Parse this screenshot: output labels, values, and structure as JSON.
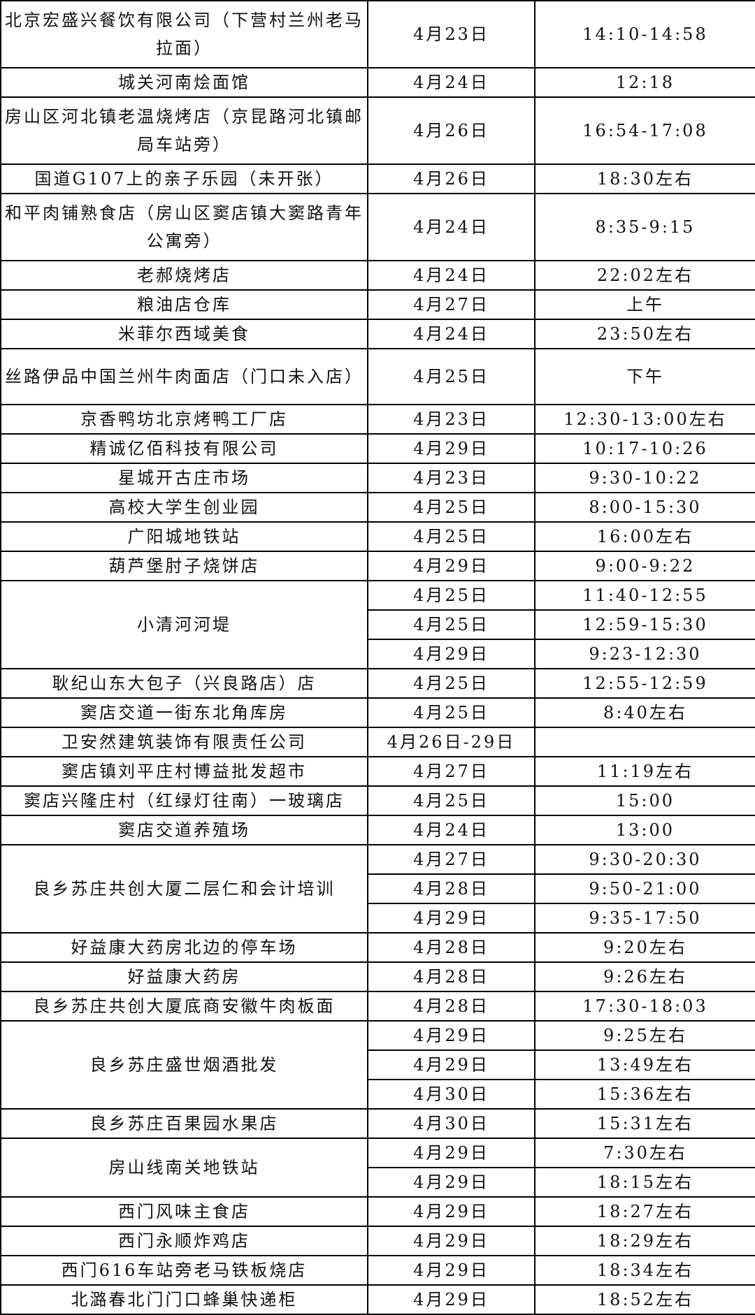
{
  "rows": [
    {
      "place": "北京宏盛兴餐饮有限公司（下营村兰州老马拉面）",
      "visits": [
        {
          "date": "4月23日",
          "time": "14:10-14:58"
        }
      ],
      "size": "tall"
    },
    {
      "place": "城关河南烩面馆",
      "visits": [
        {
          "date": "4月24日",
          "time": "12:18"
        }
      ]
    },
    {
      "place": "房山区河北镇老温烧烤店（京昆路河北镇邮局车站旁）",
      "visits": [
        {
          "date": "4月26日",
          "time": "16:54-17:08"
        }
      ],
      "size": "tall"
    },
    {
      "place": "国道G107上的亲子乐园（未开张）",
      "visits": [
        {
          "date": "4月26日",
          "time": "18:30左右"
        }
      ]
    },
    {
      "place": "和平肉铺熟食店（房山区窦店镇大窦路青年公寓旁）",
      "visits": [
        {
          "date": "4月24日",
          "time": "8:35-9:15"
        }
      ],
      "size": "tall"
    },
    {
      "place": "老郝烧烤店",
      "visits": [
        {
          "date": "4月24日",
          "time": "22:02左右"
        }
      ]
    },
    {
      "place": "粮油店仓库",
      "visits": [
        {
          "date": "4月27日",
          "time": "上午"
        }
      ]
    },
    {
      "place": "米菲尔西域美食",
      "visits": [
        {
          "date": "4月24日",
          "time": "23:50左右"
        }
      ]
    },
    {
      "place": "丝路伊品中国兰州牛肉面店（门口未入店）",
      "visits": [
        {
          "date": "4月25日",
          "time": "下午"
        }
      ],
      "size": "mid"
    },
    {
      "place": "京香鸭坊北京烤鸭工厂店",
      "visits": [
        {
          "date": "4月23日",
          "time": "12:30-13:00左右"
        }
      ]
    },
    {
      "place": "精诚亿佰科技有限公司",
      "visits": [
        {
          "date": "4月29日",
          "time": "10:17-10:26"
        }
      ]
    },
    {
      "place": "星城开古庄市场",
      "visits": [
        {
          "date": "4月23日",
          "time": "9:30-10:22"
        }
      ]
    },
    {
      "place": "高校大学生创业园",
      "visits": [
        {
          "date": "4月25日",
          "time": "8:00-15:30"
        }
      ]
    },
    {
      "place": "广阳城地铁站",
      "visits": [
        {
          "date": "4月25日",
          "time": "16:00左右"
        }
      ]
    },
    {
      "place": "葫芦堡肘子烧饼店",
      "visits": [
        {
          "date": "4月29日",
          "time": "9:00-9:22"
        }
      ]
    },
    {
      "place": "小清河河堤",
      "visits": [
        {
          "date": "4月25日",
          "time": "11:40-12:55"
        },
        {
          "date": "4月25日",
          "time": "12:59-15:30"
        },
        {
          "date": "4月29日",
          "time": "9:23-12:30"
        }
      ]
    },
    {
      "place": "耿纪山东大包子（兴良路店）店",
      "visits": [
        {
          "date": "4月25日",
          "time": "12:55-12:59"
        }
      ]
    },
    {
      "place": "窦店交道一街东北角库房",
      "visits": [
        {
          "date": "4月25日",
          "time": "8:40左右"
        }
      ]
    },
    {
      "place": "卫安然建筑装饰有限责任公司",
      "visits": [
        {
          "date": "4月26日-29日",
          "time": ""
        }
      ]
    },
    {
      "place": "窦店镇刘平庄村博益批发超市",
      "visits": [
        {
          "date": "4月27日",
          "time": "11:19左右"
        }
      ]
    },
    {
      "place": "窦店兴隆庄村（红绿灯往南）一玻璃店",
      "visits": [
        {
          "date": "4月25日",
          "time": "15:00"
        }
      ]
    },
    {
      "place": "窦店交道养殖场",
      "visits": [
        {
          "date": "4月24日",
          "time": "13:00"
        }
      ]
    },
    {
      "place": "良乡苏庄共创大厦二层仁和会计培训",
      "visits": [
        {
          "date": "4月27日",
          "time": "9:30-20:30"
        },
        {
          "date": "4月28日",
          "time": "9:50-21:00"
        },
        {
          "date": "4月29日",
          "time": "9:35-17:50"
        }
      ]
    },
    {
      "place": "好益康大药房北边的停车场",
      "visits": [
        {
          "date": "4月28日",
          "time": "9:20左右"
        }
      ]
    },
    {
      "place": "好益康大药房",
      "visits": [
        {
          "date": "4月28日",
          "time": "9:26左右"
        }
      ]
    },
    {
      "place": "良乡苏庄共创大厦底商安徽牛肉板面",
      "visits": [
        {
          "date": "4月28日",
          "time": "17:30-18:03"
        }
      ]
    },
    {
      "place": "良乡苏庄盛世烟酒批发",
      "visits": [
        {
          "date": "4月29日",
          "time": "9:25左右"
        },
        {
          "date": "4月29日",
          "time": "13:49左右"
        },
        {
          "date": "4月30日",
          "time": "15:36左右"
        }
      ]
    },
    {
      "place": "良乡苏庄百果园水果店",
      "visits": [
        {
          "date": "4月30日",
          "time": "15:31左右"
        }
      ]
    },
    {
      "place": "房山线南关地铁站",
      "visits": [
        {
          "date": "4月29日",
          "time": "7:30左右"
        },
        {
          "date": "4月29日",
          "time": "18:15左右"
        }
      ]
    },
    {
      "place": "西门风味主食店",
      "visits": [
        {
          "date": "4月29日",
          "time": "18:27左右"
        }
      ]
    },
    {
      "place": "西门永顺炸鸡店",
      "visits": [
        {
          "date": "4月29日",
          "time": "18:29左右"
        }
      ]
    },
    {
      "place": "西门616车站旁老马铁板烧店",
      "visits": [
        {
          "date": "4月29日",
          "time": "18:34左右"
        }
      ]
    },
    {
      "place": "北潞春北门门口蜂巢快递柜",
      "visits": [
        {
          "date": "4月29日",
          "time": "18:52左右"
        }
      ]
    }
  ]
}
